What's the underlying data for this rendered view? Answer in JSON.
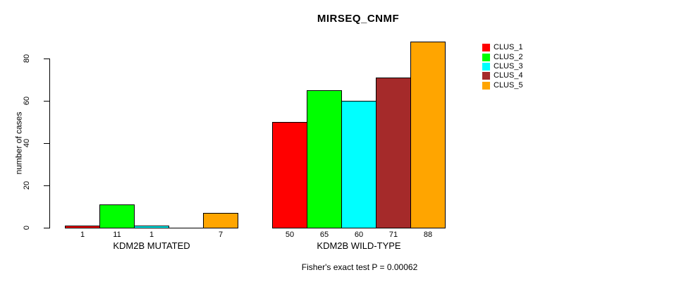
{
  "chart_data": {
    "type": "bar",
    "title": "MIRSEQ_CNMF",
    "ylabel": "number of cases",
    "xlabel": "",
    "footnote": "Fisher's exact test P = 0.00062",
    "ylim": [
      0,
      88
    ],
    "yticks": [
      0,
      20,
      40,
      60,
      80
    ],
    "grid": false,
    "legend_position": "right-outside",
    "bar_border_color": "#000000",
    "legend": [
      {
        "label": "CLUS_1",
        "color": "#FF0000"
      },
      {
        "label": "CLUS_2",
        "color": "#00FF00"
      },
      {
        "label": "CLUS_3",
        "color": "#00FFFF"
      },
      {
        "label": "CLUS_4",
        "color": "#A52A2A"
      },
      {
        "label": "CLUS_5",
        "color": "#FFA500"
      }
    ],
    "categories": [
      "KDM2B MUTATED",
      "KDM2B WILD-TYPE"
    ],
    "groups": [
      {
        "label": "KDM2B MUTATED",
        "values": [
          1,
          11,
          1,
          0,
          7
        ],
        "bar_labels": [
          "1",
          "11",
          "1",
          "",
          "7"
        ]
      },
      {
        "label": "KDM2B WILD-TYPE",
        "values": [
          50,
          65,
          60,
          71,
          88
        ],
        "bar_labels": [
          "50",
          "65",
          "60",
          "71",
          "88"
        ]
      }
    ]
  }
}
